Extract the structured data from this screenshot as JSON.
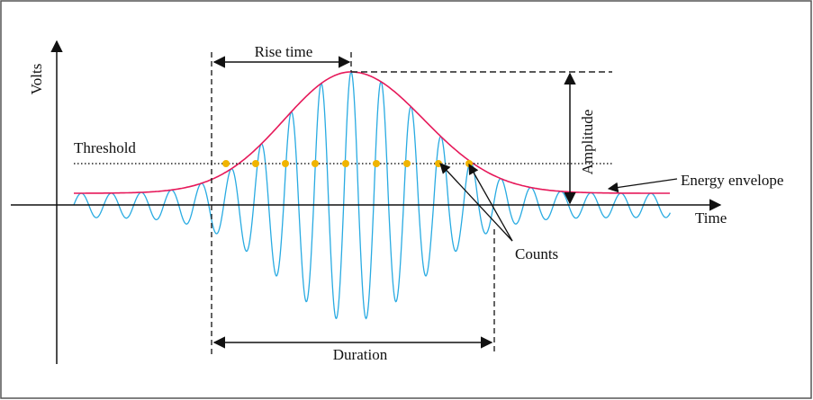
{
  "labels": {
    "y_axis": "Volts",
    "x_axis": "Time",
    "threshold": "Threshold",
    "rise_time": "Rise time",
    "amplitude": "Amplitude",
    "energy_envelope": "Energy envelope",
    "counts": "Counts",
    "duration": "Duration"
  },
  "colors": {
    "signal": "#29abe2",
    "envelope": "#e6195a",
    "count_marker": "#f0b400",
    "ink": "#111111",
    "border": "#555555"
  }
}
